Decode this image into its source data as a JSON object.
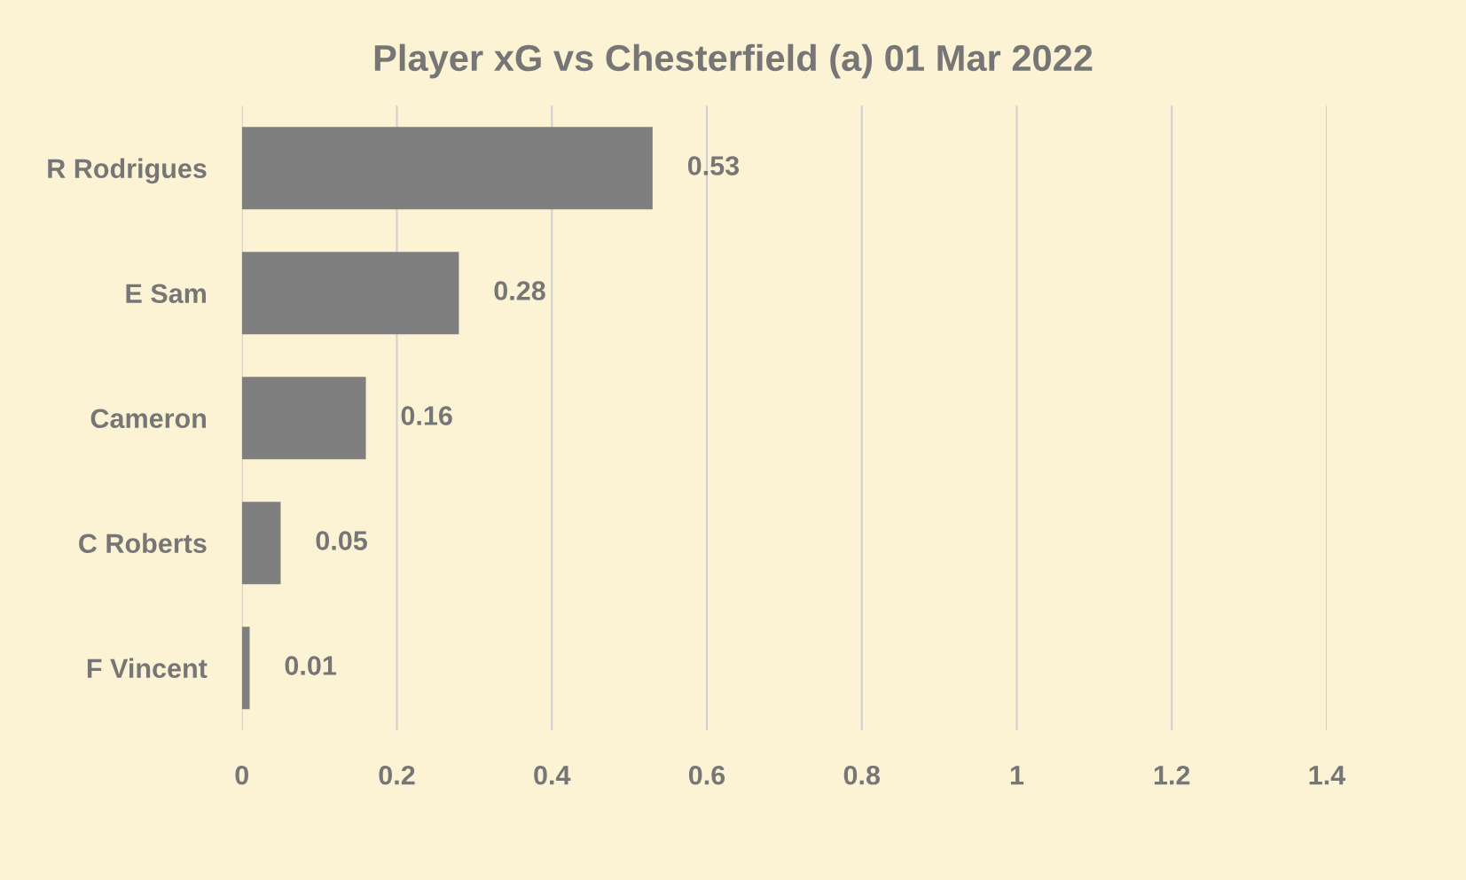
{
  "chart_data": {
    "type": "bar",
    "orientation": "horizontal",
    "title": "Player xG vs Chesterfield (a) 01 Mar 2022",
    "categories": [
      "R Rodrigues",
      "E Sam",
      "Cameron",
      "C Roberts",
      "F Vincent"
    ],
    "values": [
      0.53,
      0.28,
      0.16,
      0.05,
      0.01
    ],
    "color": "#7f7f7f",
    "xlim": [
      0,
      1.4
    ],
    "xticks": [
      0,
      0.2,
      0.4,
      0.6,
      0.8,
      1,
      1.2,
      1.4
    ],
    "grid": "x",
    "data_labels": true
  }
}
